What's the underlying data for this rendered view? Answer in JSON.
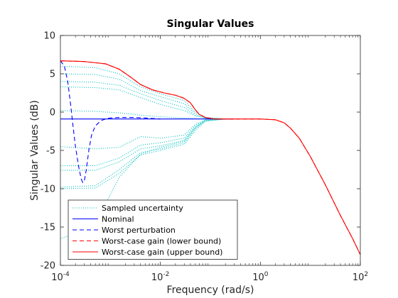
{
  "chart_data": {
    "type": "line",
    "title": "Singular Values",
    "xlabel": "Frequency (rad/s)",
    "ylabel": "Singular Values (dB)",
    "xscale": "log",
    "xlim": [
      0.0001,
      100
    ],
    "ylim": [
      -20,
      10
    ],
    "x_ticks": [
      {
        "value": 0.0001,
        "base": "10",
        "exp": "-4"
      },
      {
        "value": 0.01,
        "base": "10",
        "exp": "-2"
      },
      {
        "value": 1,
        "base": "10",
        "exp": "0"
      },
      {
        "value": 100,
        "base": "10",
        "exp": "2"
      }
    ],
    "y_ticks": [
      10,
      5,
      0,
      -5,
      -10,
      -15,
      -20
    ],
    "legend_position": "bottom-left",
    "legend": [
      {
        "label": "Sampled uncertainty",
        "color": "#00bfbf",
        "style": "dotted"
      },
      {
        "label": "Nominal",
        "color": "#0000ff",
        "style": "solid"
      },
      {
        "label": "Worst perturbation",
        "color": "#0000ff",
        "style": "dashed"
      },
      {
        "label": "Worst-case gain (lower bound)",
        "color": "#ff0000",
        "style": "dashed"
      },
      {
        "label": "Worst-case gain (upper bound)",
        "color": "#ff0000",
        "style": "solid"
      }
    ],
    "series": [
      {
        "name": "Nominal",
        "color": "#0000ff",
        "style": "solid",
        "points": [
          [
            0.0001,
            -0.9
          ],
          [
            0.3,
            -0.9
          ]
        ]
      },
      {
        "name": "Worst perturbation",
        "color": "#0000ff",
        "style": "dashed",
        "points": [
          [
            0.0001,
            6.7
          ],
          [
            0.00012,
            6.0
          ],
          [
            0.00014,
            4.0
          ],
          [
            0.00016,
            1.0
          ],
          [
            0.00018,
            -2.0
          ],
          [
            0.0002,
            -4.5
          ],
          [
            0.00023,
            -7.0
          ],
          [
            0.00026,
            -8.7
          ],
          [
            0.00028,
            -9.2
          ],
          [
            0.0003,
            -9.0
          ],
          [
            0.00033,
            -7.5
          ],
          [
            0.00037,
            -5.0
          ],
          [
            0.00042,
            -3.0
          ],
          [
            0.0005,
            -1.8
          ],
          [
            0.00065,
            -1.1
          ],
          [
            0.0009,
            -0.8
          ],
          [
            0.0015,
            -0.7
          ],
          [
            0.003,
            -0.7
          ],
          [
            0.006,
            -0.8
          ],
          [
            0.01,
            -0.9
          ]
        ]
      },
      {
        "name": "Worst-case gain (lower bound)",
        "color": "#ff0000",
        "style": "dashed",
        "points": [
          [
            0.0001,
            6.7
          ],
          [
            0.0003,
            6.6
          ],
          [
            0.0008,
            6.3
          ],
          [
            0.0015,
            5.6
          ],
          [
            0.0025,
            4.6
          ],
          [
            0.004,
            3.6
          ],
          [
            0.007,
            2.9
          ],
          [
            0.012,
            2.5
          ],
          [
            0.02,
            2.2
          ],
          [
            0.03,
            1.8
          ],
          [
            0.04,
            1.2
          ],
          [
            0.05,
            0.3
          ],
          [
            0.06,
            -0.3
          ],
          [
            0.08,
            -0.7
          ],
          [
            0.12,
            -0.9
          ],
          [
            0.3,
            -0.9
          ],
          [
            1,
            -0.9
          ],
          [
            2,
            -1.0
          ],
          [
            3,
            -1.4
          ],
          [
            4,
            -2.1
          ],
          [
            6,
            -3.4
          ],
          [
            10,
            -5.8
          ],
          [
            20,
            -9.5
          ],
          [
            40,
            -13.5
          ],
          [
            70,
            -16.5
          ],
          [
            100,
            -18.6
          ]
        ]
      },
      {
        "name": "Worst-case gain (upper bound)",
        "color": "#ff0000",
        "style": "solid",
        "points": [
          [
            0.0001,
            6.7
          ],
          [
            0.0003,
            6.6
          ],
          [
            0.0008,
            6.3
          ],
          [
            0.0015,
            5.6
          ],
          [
            0.0025,
            4.6
          ],
          [
            0.004,
            3.6
          ],
          [
            0.007,
            2.9
          ],
          [
            0.012,
            2.5
          ],
          [
            0.02,
            2.2
          ],
          [
            0.03,
            1.8
          ],
          [
            0.04,
            1.2
          ],
          [
            0.05,
            0.3
          ],
          [
            0.06,
            -0.3
          ],
          [
            0.08,
            -0.7
          ],
          [
            0.12,
            -0.9
          ],
          [
            0.3,
            -0.9
          ],
          [
            1,
            -0.9
          ],
          [
            2,
            -1.0
          ],
          [
            3,
            -1.4
          ],
          [
            4,
            -2.1
          ],
          [
            6,
            -3.4
          ],
          [
            10,
            -5.8
          ],
          [
            20,
            -9.5
          ],
          [
            40,
            -13.5
          ],
          [
            70,
            -16.5
          ],
          [
            100,
            -18.6
          ]
        ]
      }
    ],
    "sampled_uncertainty": {
      "color": "#00bfbf",
      "style": "dotted",
      "curves": [
        [
          [
            0.0001,
            6.0
          ],
          [
            0.0005,
            5.8
          ],
          [
            0.0015,
            5.0
          ],
          [
            0.004,
            3.3
          ],
          [
            0.01,
            2.4
          ],
          [
            0.03,
            1.5
          ],
          [
            0.05,
            0.0
          ],
          [
            0.08,
            -0.7
          ],
          [
            0.2,
            -0.9
          ]
        ],
        [
          [
            0.0001,
            5.0
          ],
          [
            0.0005,
            4.9
          ],
          [
            0.0015,
            4.3
          ],
          [
            0.004,
            2.8
          ],
          [
            0.01,
            2.0
          ],
          [
            0.03,
            1.1
          ],
          [
            0.05,
            -0.2
          ],
          [
            0.08,
            -0.8
          ],
          [
            0.2,
            -0.9
          ]
        ],
        [
          [
            0.0001,
            4.0
          ],
          [
            0.0005,
            3.9
          ],
          [
            0.0015,
            3.5
          ],
          [
            0.004,
            2.4
          ],
          [
            0.01,
            1.5
          ],
          [
            0.03,
            0.6
          ],
          [
            0.05,
            -0.4
          ],
          [
            0.08,
            -0.8
          ],
          [
            0.2,
            -0.9
          ]
        ],
        [
          [
            0.0001,
            3.3
          ],
          [
            0.0005,
            3.2
          ],
          [
            0.0015,
            2.9
          ],
          [
            0.004,
            1.9
          ],
          [
            0.01,
            1.0
          ],
          [
            0.03,
            0.2
          ],
          [
            0.05,
            -0.5
          ],
          [
            0.08,
            -0.8
          ],
          [
            0.2,
            -0.9
          ]
        ],
        [
          [
            0.0001,
            0.2
          ],
          [
            0.0005,
            0.1
          ],
          [
            0.0015,
            -0.1
          ],
          [
            0.004,
            -0.4
          ],
          [
            0.01,
            -0.6
          ],
          [
            0.03,
            -0.8
          ],
          [
            0.08,
            -0.9
          ],
          [
            0.2,
            -0.9
          ]
        ],
        [
          [
            0.0001,
            -4.5
          ],
          [
            0.0005,
            -4.8
          ],
          [
            0.0015,
            -4.6
          ],
          [
            0.004,
            -3.2
          ],
          [
            0.01,
            -3.4
          ],
          [
            0.03,
            -3.0
          ],
          [
            0.05,
            -1.6
          ],
          [
            0.08,
            -1.0
          ],
          [
            0.2,
            -0.9
          ]
        ],
        [
          [
            0.0001,
            -7.0
          ],
          [
            0.0005,
            -7.0
          ],
          [
            0.0015,
            -6.0
          ],
          [
            0.004,
            -4.3
          ],
          [
            0.01,
            -4.0
          ],
          [
            0.03,
            -3.4
          ],
          [
            0.05,
            -1.8
          ],
          [
            0.08,
            -1.0
          ],
          [
            0.2,
            -0.9
          ]
        ],
        [
          [
            0.0001,
            -7.6
          ],
          [
            0.0005,
            -7.6
          ],
          [
            0.0015,
            -6.5
          ],
          [
            0.004,
            -4.8
          ],
          [
            0.01,
            -4.4
          ],
          [
            0.03,
            -3.7
          ],
          [
            0.05,
            -2.0
          ],
          [
            0.08,
            -1.1
          ],
          [
            0.2,
            -0.9
          ]
        ],
        [
          [
            0.0001,
            -9.8
          ],
          [
            0.0005,
            -9.6
          ],
          [
            0.0015,
            -7.5
          ],
          [
            0.004,
            -5.3
          ],
          [
            0.01,
            -4.8
          ],
          [
            0.03,
            -4.0
          ],
          [
            0.05,
            -2.2
          ],
          [
            0.08,
            -1.1
          ],
          [
            0.2,
            -0.9
          ]
        ],
        [
          [
            0.0001,
            -10.0
          ],
          [
            0.0005,
            -9.9
          ],
          [
            0.0015,
            -8.0
          ],
          [
            0.004,
            -5.6
          ],
          [
            0.01,
            -5.0
          ],
          [
            0.03,
            -4.2
          ],
          [
            0.05,
            -2.4
          ],
          [
            0.08,
            -1.2
          ],
          [
            0.2,
            -0.9
          ]
        ],
        [
          [
            0.0001,
            -16.5
          ],
          [
            0.0003,
            -15.5
          ],
          [
            0.0008,
            -12.0
          ],
          [
            0.0015,
            -8.5
          ],
          [
            0.004,
            -5.5
          ],
          [
            0.01,
            -4.6
          ],
          [
            0.03,
            -3.8
          ],
          [
            0.05,
            -2.0
          ],
          [
            0.08,
            -1.1
          ],
          [
            0.2,
            -0.9
          ]
        ]
      ]
    }
  }
}
